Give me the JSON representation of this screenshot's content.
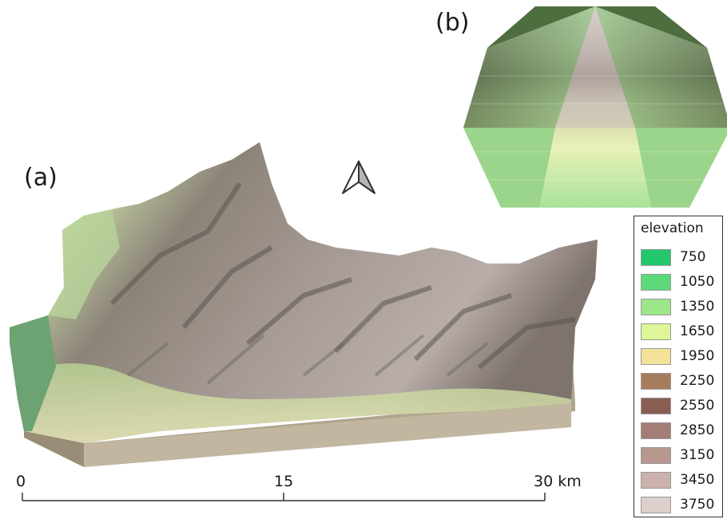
{
  "panels": {
    "a": "(a)",
    "b": "(b)"
  },
  "legend": {
    "title": "elevation",
    "items": [
      {
        "value": "750",
        "color": "#22c86a"
      },
      {
        "value": "1050",
        "color": "#5ed97a"
      },
      {
        "value": "1350",
        "color": "#9ee68a"
      },
      {
        "value": "1650",
        "color": "#dff59a"
      },
      {
        "value": "1950",
        "color": "#f4e29a"
      },
      {
        "value": "2250",
        "color": "#a67c5c"
      },
      {
        "value": "2550",
        "color": "#8b5d52"
      },
      {
        "value": "2850",
        "color": "#a37d76"
      },
      {
        "value": "3150",
        "color": "#b8978f"
      },
      {
        "value": "3450",
        "color": "#cbb2ac"
      },
      {
        "value": "3750",
        "color": "#ddd0cc"
      }
    ]
  },
  "scale": {
    "start": "0",
    "mid": "15",
    "end": "30 km"
  },
  "icons": {
    "north": "north-arrow-icon"
  }
}
